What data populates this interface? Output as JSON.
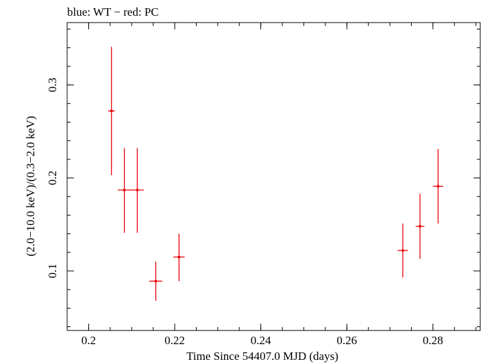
{
  "chart_data": {
    "type": "scatter",
    "title": "blue: WT − red: PC",
    "xlabel": "Time Since 54407.0 MJD (days)",
    "ylabel": "(2.0−10.0 keV)/(0.3−2.0 keV)",
    "xlim": [
      0.195,
      0.291
    ],
    "ylim": [
      0.036,
      0.367
    ],
    "x_ticks": [
      0.2,
      0.22,
      0.24,
      0.26,
      0.28
    ],
    "x_tick_labels": [
      "0.2",
      "0.22",
      "0.24",
      "0.26",
      "0.28"
    ],
    "y_ticks": [
      0.1,
      0.2,
      0.3
    ],
    "y_tick_labels": [
      "0.1",
      "0.2",
      "0.3"
    ],
    "grid": false,
    "series": [
      {
        "color": "#e8000b",
        "points": [
          {
            "x": 0.2053,
            "xerr": 0.0008,
            "y": 0.272,
            "ylo": 0.203,
            "yhi": 0.341
          },
          {
            "x": 0.2083,
            "xerr": 0.0015,
            "y": 0.187,
            "ylo": 0.141,
            "yhi": 0.232
          },
          {
            "x": 0.2113,
            "xerr": 0.0015,
            "y": 0.187,
            "ylo": 0.141,
            "yhi": 0.232
          },
          {
            "x": 0.2156,
            "xerr": 0.0015,
            "y": 0.089,
            "ylo": 0.068,
            "yhi": 0.11
          },
          {
            "x": 0.221,
            "xerr": 0.0013,
            "y": 0.115,
            "ylo": 0.089,
            "yhi": 0.14
          },
          {
            "x": 0.273,
            "xerr": 0.0012,
            "y": 0.122,
            "ylo": 0.093,
            "yhi": 0.151
          },
          {
            "x": 0.277,
            "xerr": 0.001,
            "y": 0.148,
            "ylo": 0.113,
            "yhi": 0.183
          },
          {
            "x": 0.2812,
            "xerr": 0.0012,
            "y": 0.191,
            "ylo": 0.151,
            "yhi": 0.231
          }
        ]
      }
    ]
  }
}
